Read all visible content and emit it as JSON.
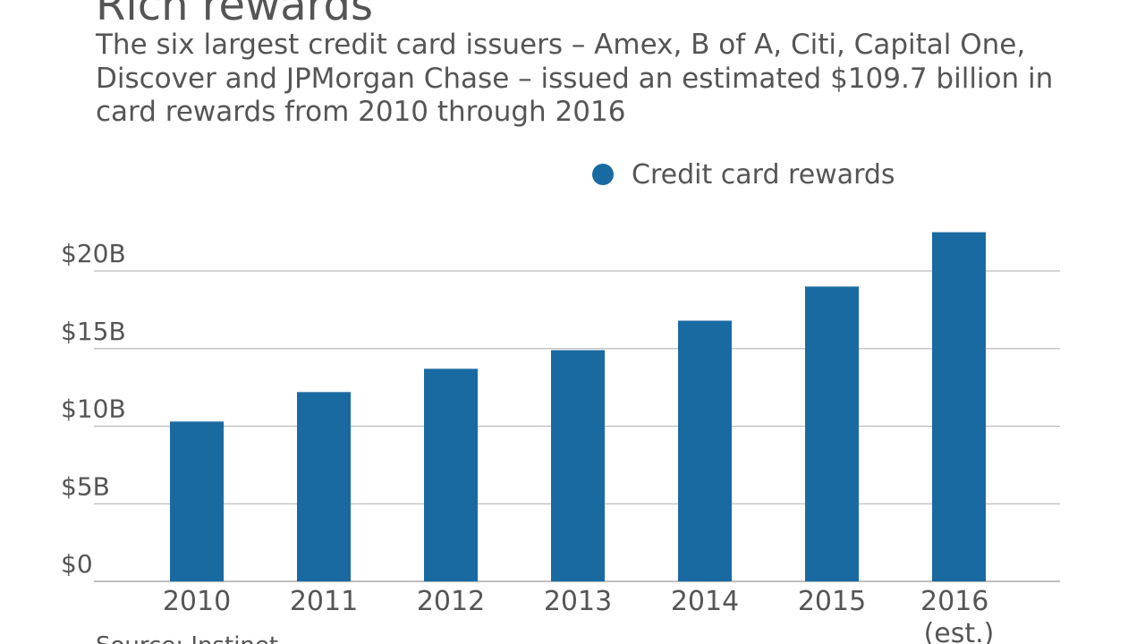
{
  "chart_data": {
    "type": "bar",
    "title": "Rich rewards",
    "subtitle": "The six largest credit card issuers – Amex, B of A, Citi, Capital One, Discover and JPMorgan Chase – issued an estimated $109.7 billion in card rewards from 2010 through 2016",
    "source": "Source: Instinet",
    "categories": [
      "2010",
      "2011",
      "2012",
      "2013",
      "2014",
      "2015",
      "2016 (est.)"
    ],
    "series": [
      {
        "name": "Credit card rewards",
        "color": "#1a6aa2",
        "values": [
          10.3,
          12.2,
          13.7,
          14.9,
          16.8,
          19.0,
          22.5
        ]
      }
    ],
    "ylim": [
      0,
      25
    ],
    "yticks": [
      {
        "value": 0,
        "label": "$0"
      },
      {
        "value": 5,
        "label": "$5B"
      },
      {
        "value": 10,
        "label": "$10B"
      },
      {
        "value": 15,
        "label": "$15B"
      },
      {
        "value": 20,
        "label": "$20B"
      }
    ],
    "grid": true
  }
}
